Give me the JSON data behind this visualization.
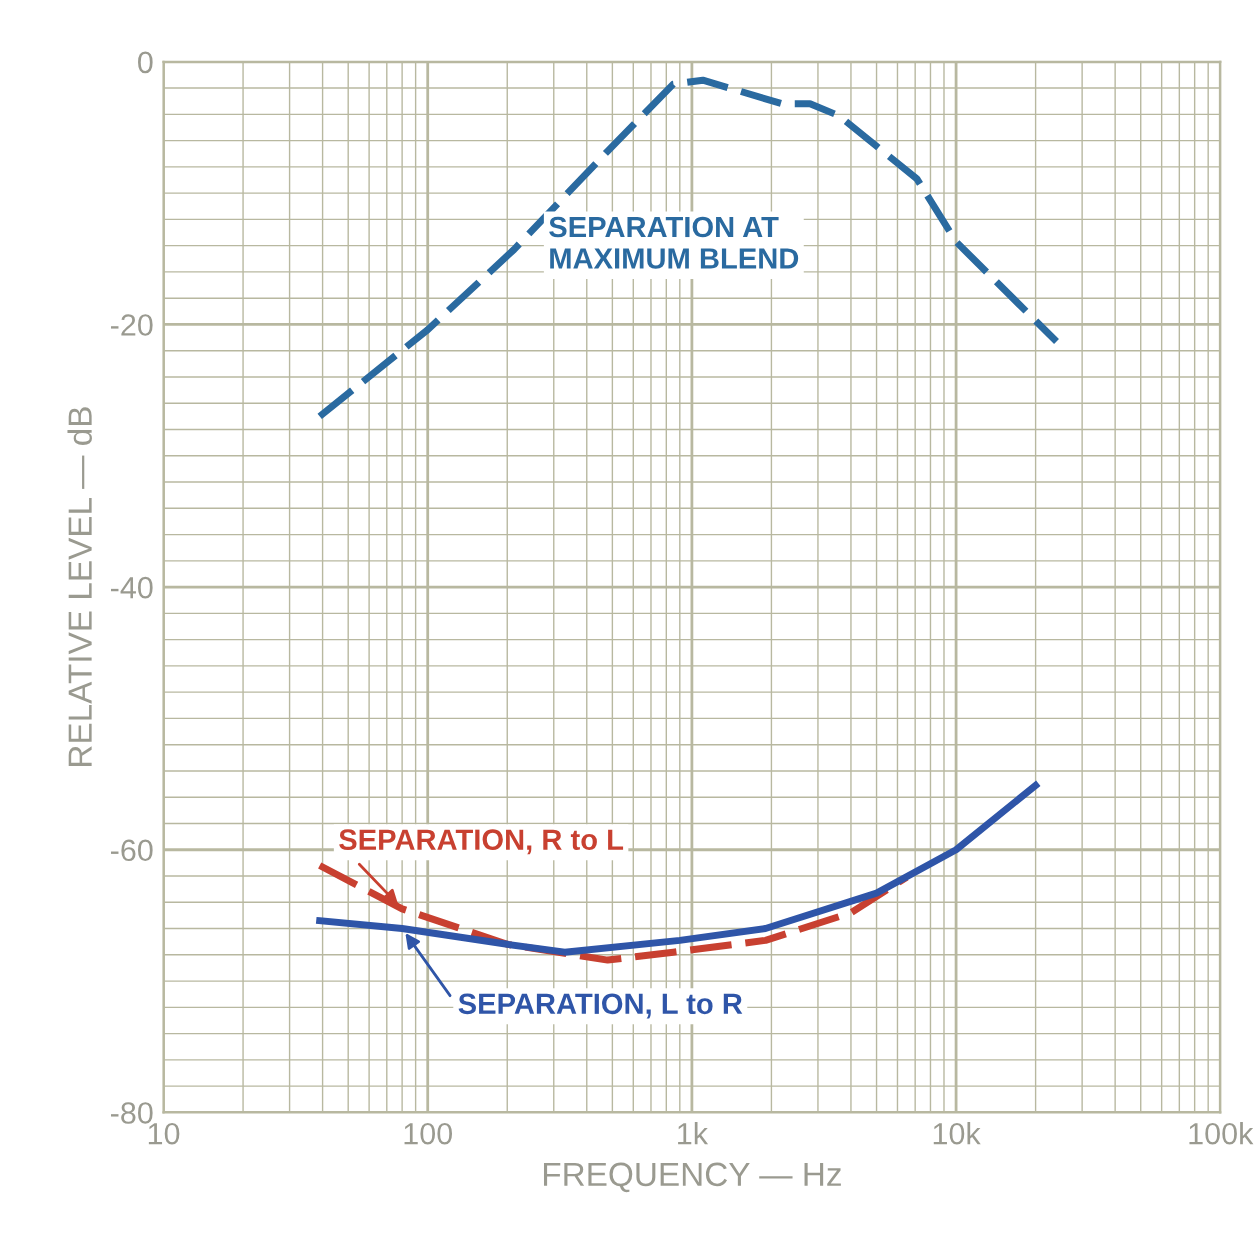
{
  "chart_data": {
    "type": "line",
    "xlabel": "FREQUENCY — Hz",
    "ylabel": "RELATIVE LEVEL — dB",
    "log": "x",
    "grid": true,
    "legend": false,
    "xlim": [
      10,
      100000
    ],
    "xticks": [
      10,
      100,
      {
        "value": 1000,
        "label": "1k"
      },
      {
        "value": 10000,
        "label": "10k"
      },
      {
        "value": 100000,
        "label": "100k"
      }
    ],
    "ylim": [
      -80,
      0
    ],
    "yticks": [
      0,
      {
        "value": -20,
        "label": "-20"
      },
      {
        "value": -40,
        "label": "-40"
      },
      {
        "value": -60,
        "label": "-60"
      },
      {
        "value": -80,
        "label": "-80"
      }
    ],
    "series": [
      {
        "name": "SEPARATION AT MAXIMUM BLEND",
        "color": "#2a6aa0",
        "line_style": "dashed",
        "x": [
          39,
          100,
          212,
          480,
          850,
          1100,
          2200,
          2800,
          3600,
          7100,
          10000,
          24000
        ],
        "values": [
          -27.0,
          -20.4,
          -14.3,
          -6.8,
          -1.7,
          -1.4,
          -3.2,
          -3.2,
          -4.1,
          -8.9,
          -13.7,
          -21.3
        ]
      },
      {
        "name": "SEPARATION, R to L",
        "color": "#c84030",
        "line_style": "dashed",
        "x": [
          39,
          80,
          200,
          480,
          850,
          1900,
          4000,
          6500
        ],
        "values": [
          -61.2,
          -64.5,
          -67.2,
          -68.4,
          -67.8,
          -66.9,
          -64.8,
          -62.1
        ]
      },
      {
        "name": "SEPARATION, L to R",
        "color": "#2f55a8",
        "line_style": "solid",
        "x": [
          39,
          80,
          200,
          330,
          900,
          1900,
          5000,
          10000,
          20000
        ],
        "values": [
          -65.4,
          -66.0,
          -67.2,
          -67.8,
          -66.9,
          -66.0,
          -63.3,
          -60.0,
          -55.1
        ]
      }
    ]
  }
}
